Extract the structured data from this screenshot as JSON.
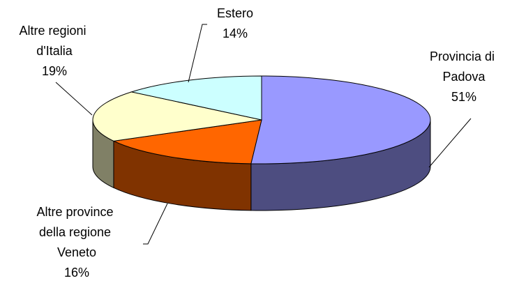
{
  "chart_data": {
    "type": "pie3d",
    "categories": [
      "Provincia di Padova",
      "Altre province della regione Veneto",
      "Altre regioni d'Italia",
      "Estero"
    ],
    "values": [
      51,
      16,
      19,
      14
    ],
    "value_labels": [
      "51%",
      "16%",
      "19%",
      "14%"
    ],
    "colors": [
      "#9999ff",
      "#ff6600",
      "#ffffcc",
      "#ccffff"
    ]
  }
}
